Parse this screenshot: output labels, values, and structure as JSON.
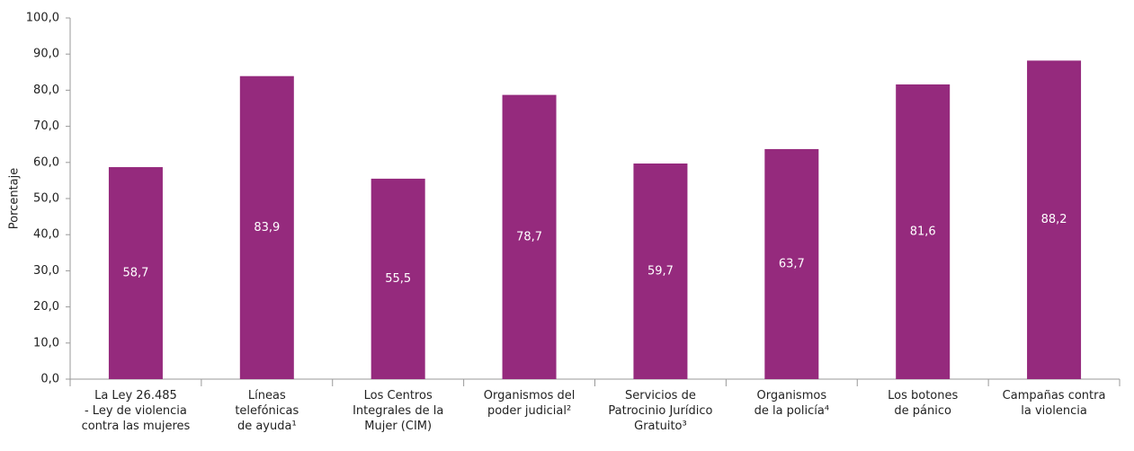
{
  "chart_data": {
    "type": "bar",
    "y_label": "Porcentaje",
    "categories": [
      "La Ley 26.485\n- Ley de violencia\ncontra las mujeres",
      "Líneas\ntelefónicas\nde ayuda¹",
      "Los Centros\nIntegrales de la\nMujer (CIM)",
      "Organismos del\npoder judicial²",
      "Servicios de\nPatrocinio Jurídico\nGratuito³",
      "Organismos\nde la policía⁴",
      "Los botones\nde pánico",
      "Campañas contra\nla violencia"
    ],
    "values": [
      58.7,
      83.9,
      55.5,
      78.7,
      59.7,
      63.7,
      81.6,
      88.2
    ],
    "value_labels": [
      "58,7",
      "83,9",
      "55,5",
      "78,7",
      "59,7",
      "63,7",
      "81,6",
      "88,2"
    ],
    "color": "#952a7d",
    "ylim": [
      0,
      100
    ],
    "yticks": [
      {
        "value": 0,
        "label": "0,0"
      },
      {
        "value": 10,
        "label": "10,0"
      },
      {
        "value": 20,
        "label": "20,0"
      },
      {
        "value": 30,
        "label": "30,0"
      },
      {
        "value": 40,
        "label": "40,0"
      },
      {
        "value": 50,
        "label": "50,0"
      },
      {
        "value": 60,
        "label": "60,0"
      },
      {
        "value": 70,
        "label": "70,0"
      },
      {
        "value": 80,
        "label": "80,0"
      },
      {
        "value": 90,
        "label": "90,0"
      },
      {
        "value": 100,
        "label": "100,0"
      }
    ]
  }
}
